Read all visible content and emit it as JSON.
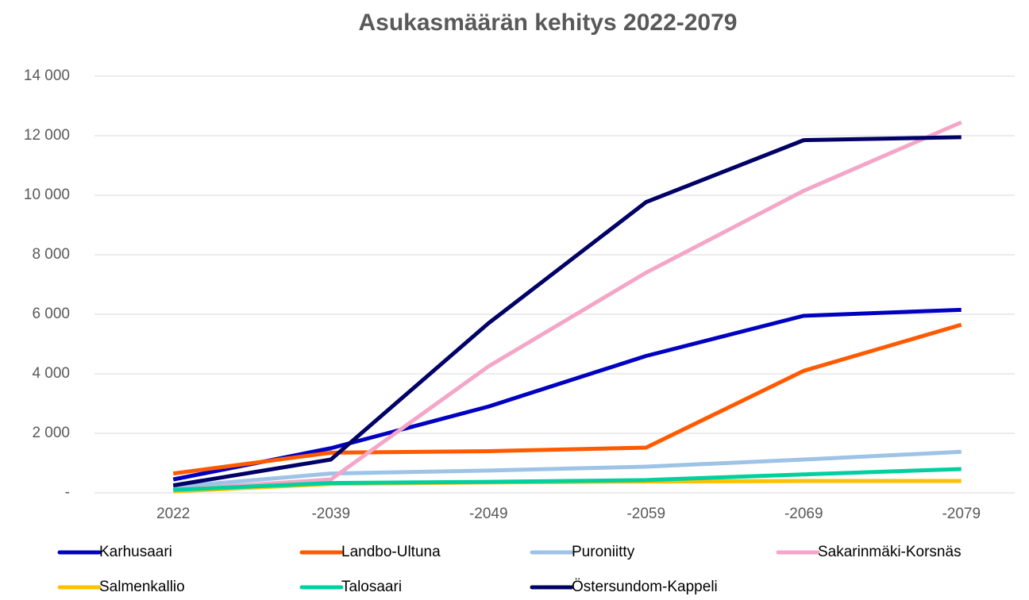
{
  "chart_data": {
    "type": "line",
    "title": "Asukasmäärän kehitys 2022-2079",
    "categories": [
      "2022",
      "-2039",
      "-2049",
      "-2059",
      "-2069",
      "-2079"
    ],
    "series": [
      {
        "name": "Karhusaari",
        "color": "#0000c0",
        "values": [
          450,
          1500,
          2900,
          4600,
          5950,
          6150
        ]
      },
      {
        "name": "Landbo-Ultuna",
        "color": "#ff5a00",
        "values": [
          650,
          1350,
          1400,
          1520,
          4100,
          5650
        ]
      },
      {
        "name": "Puroniitty",
        "color": "#9dc3e6",
        "values": [
          200,
          650,
          750,
          880,
          1120,
          1380
        ]
      },
      {
        "name": "Sakarinmäki-Korsnäs",
        "color": "#f4a6c8",
        "values": [
          100,
          450,
          4250,
          7400,
          10150,
          12450
        ]
      },
      {
        "name": "Salmenkallio",
        "color": "#ffc000",
        "values": [
          50,
          300,
          350,
          380,
          400,
          400
        ]
      },
      {
        "name": "Talosaari",
        "color": "#00d0a0",
        "values": [
          100,
          330,
          370,
          430,
          620,
          800
        ]
      },
      {
        "name": "Östersundom-Kappeli",
        "color": "#000066",
        "values": [
          250,
          1120,
          5700,
          9770,
          11850,
          11950
        ]
      }
    ],
    "ylim": [
      0,
      14000
    ],
    "yticks": [
      {
        "value": 0,
        "label": "-"
      },
      {
        "value": 2000,
        "label": "2 000"
      },
      {
        "value": 4000,
        "label": "4 000"
      },
      {
        "value": 6000,
        "label": "6 000"
      },
      {
        "value": 8000,
        "label": "8 000"
      },
      {
        "value": 10000,
        "label": "10 000"
      },
      {
        "value": 12000,
        "label": "12 000"
      },
      {
        "value": 14000,
        "label": "14 000"
      }
    ],
    "grid": true
  }
}
